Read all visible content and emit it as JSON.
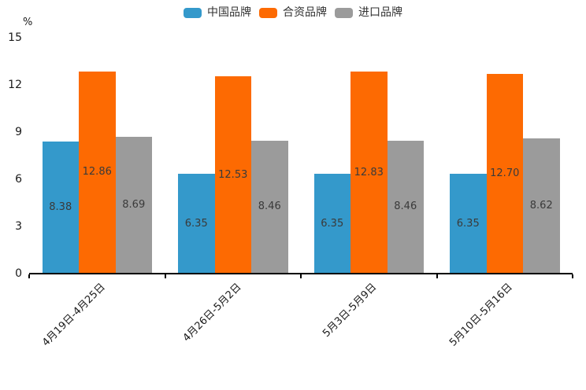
{
  "chart_data": {
    "type": "bar",
    "title": "",
    "ylabel": "%",
    "xlabel": "",
    "ylim": [
      0,
      15
    ],
    "yticks": [
      0,
      3,
      6,
      9,
      12,
      15
    ],
    "grid": false,
    "legend_position": "top",
    "value_labels": true,
    "value_decimals": 2,
    "categories": [
      "4月19日-4月25日",
      "4月26日-5月2日",
      "5月3日-5月9日",
      "5月10日-5月16日"
    ],
    "series": [
      {
        "name": "中国品牌",
        "color": "#3499CB",
        "values": [
          8.38,
          6.35,
          6.35,
          6.35
        ]
      },
      {
        "name": "合资品牌",
        "color": "#FD6A02",
        "values": [
          12.86,
          12.53,
          12.83,
          12.7
        ]
      },
      {
        "name": "进口品牌",
        "color": "#9B9B9B",
        "values": [
          8.69,
          8.46,
          8.46,
          8.62
        ]
      }
    ],
    "colors": {
      "axis_line": "#000000",
      "tick_text": "#1a1a1a",
      "value_label_text": "#3a3a3a",
      "background": "#ffffff"
    }
  }
}
